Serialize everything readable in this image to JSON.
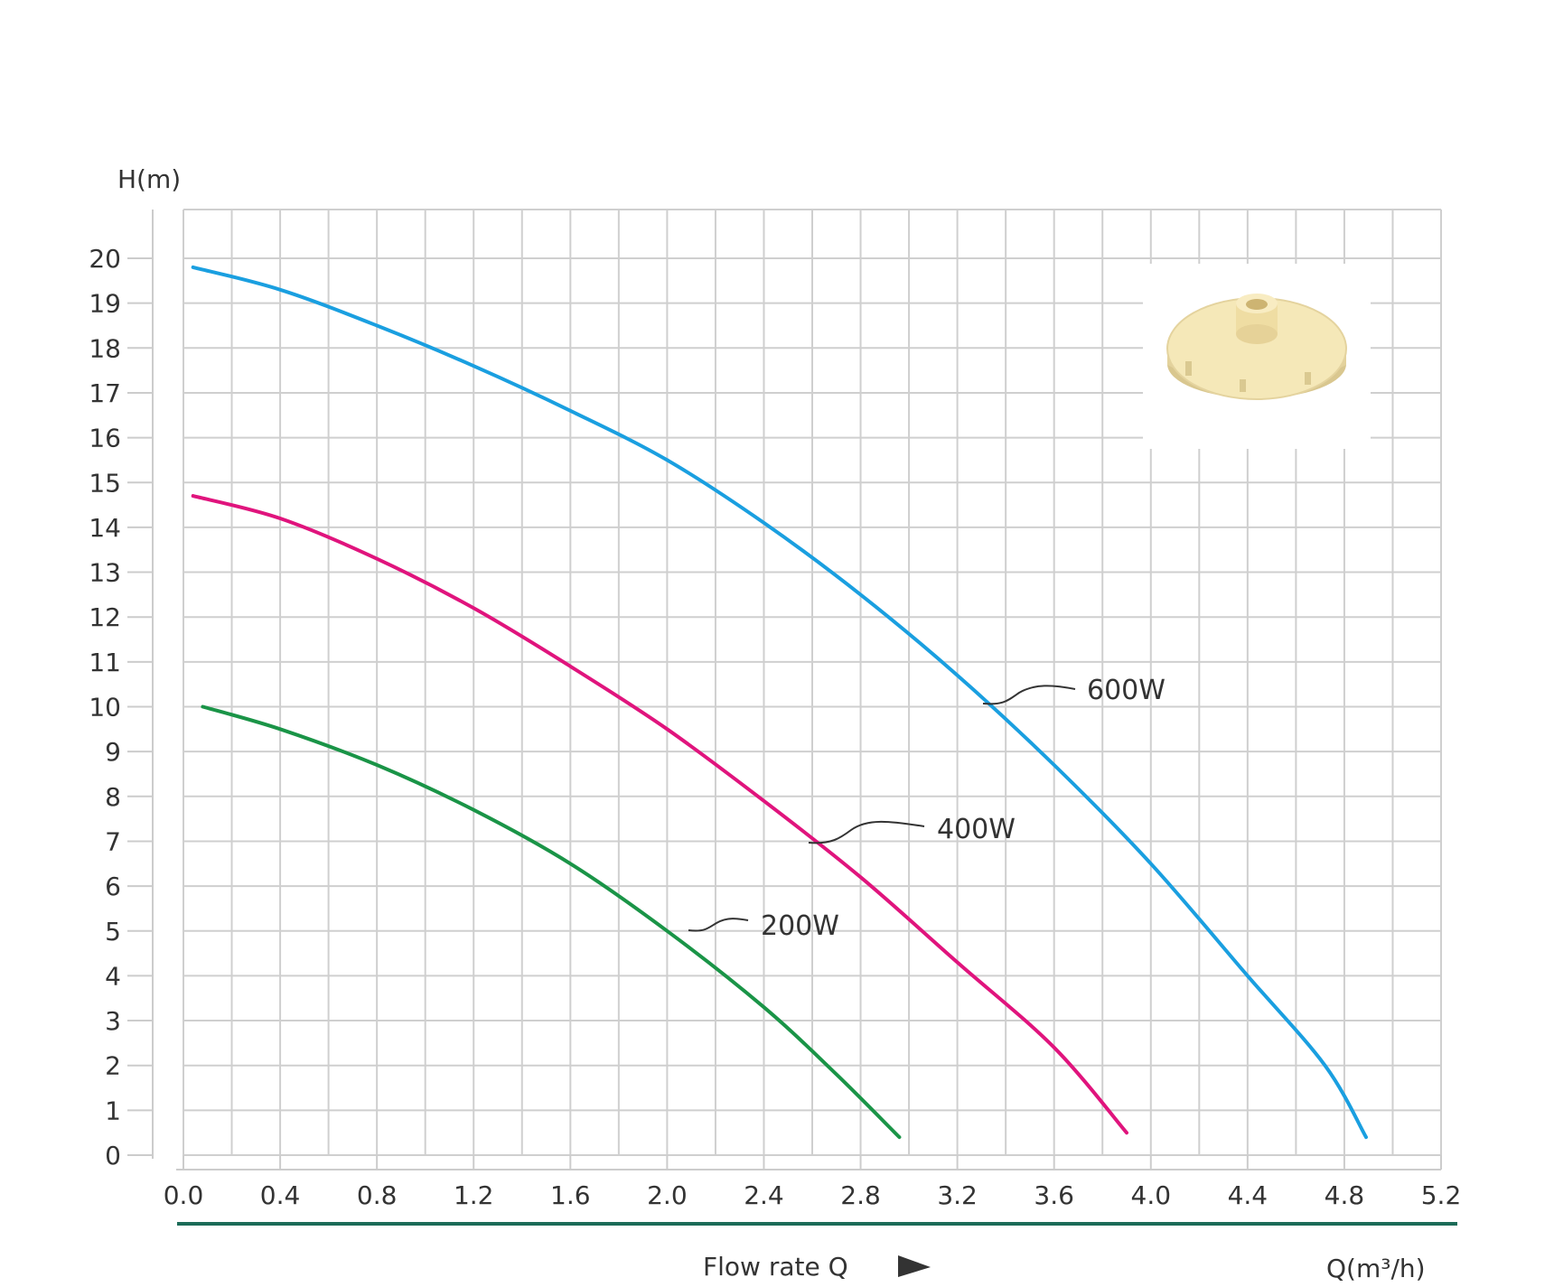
{
  "chart_data": {
    "type": "line",
    "title": "",
    "ylabel": "H(m)",
    "xlabel": "Flow rate Q",
    "x_unit_label": "Q(m³/h)",
    "xlim": [
      0.0,
      5.2
    ],
    "ylim": [
      0,
      20
    ],
    "x_ticks": [
      "0.0",
      "0.4",
      "0.8",
      "1.2",
      "1.6",
      "2.0",
      "2.4",
      "2.8",
      "3.2",
      "3.6",
      "4.0",
      "4.4",
      "4.8",
      "5.2"
    ],
    "y_ticks": [
      "0",
      "1",
      "2",
      "3",
      "4",
      "5",
      "6",
      "7",
      "8",
      "9",
      "10",
      "11",
      "12",
      "13",
      "14",
      "15",
      "16",
      "17",
      "18",
      "19",
      "20"
    ],
    "grid": true,
    "series": [
      {
        "name": "600W",
        "color": "#1a9fe0",
        "points": [
          [
            0.04,
            19.8
          ],
          [
            0.4,
            19.3
          ],
          [
            0.8,
            18.5
          ],
          [
            1.2,
            17.6
          ],
          [
            1.6,
            16.6
          ],
          [
            2.0,
            15.5
          ],
          [
            2.4,
            14.1
          ],
          [
            2.8,
            12.5
          ],
          [
            3.2,
            10.7
          ],
          [
            3.6,
            8.7
          ],
          [
            4.0,
            6.5
          ],
          [
            4.4,
            4.0
          ],
          [
            4.72,
            2.0
          ],
          [
            4.89,
            0.4
          ]
        ]
      },
      {
        "name": "400W",
        "color": "#e0147d",
        "points": [
          [
            0.04,
            14.7
          ],
          [
            0.4,
            14.2
          ],
          [
            0.8,
            13.3
          ],
          [
            1.2,
            12.2
          ],
          [
            1.6,
            10.9
          ],
          [
            2.0,
            9.5
          ],
          [
            2.4,
            7.9
          ],
          [
            2.8,
            6.2
          ],
          [
            3.2,
            4.3
          ],
          [
            3.6,
            2.4
          ],
          [
            3.9,
            0.5
          ]
        ]
      },
      {
        "name": "200W",
        "color": "#1a9447",
        "points": [
          [
            0.08,
            10.0
          ],
          [
            0.4,
            9.5
          ],
          [
            0.8,
            8.7
          ],
          [
            1.2,
            7.7
          ],
          [
            1.6,
            6.5
          ],
          [
            2.0,
            5.0
          ],
          [
            2.4,
            3.3
          ],
          [
            2.7,
            1.8
          ],
          [
            2.96,
            0.4
          ]
        ]
      }
    ]
  },
  "image_inset": {
    "icon": "impeller-image",
    "color": "#f0e1a8"
  },
  "arrow_icon": "triangle-right-icon"
}
